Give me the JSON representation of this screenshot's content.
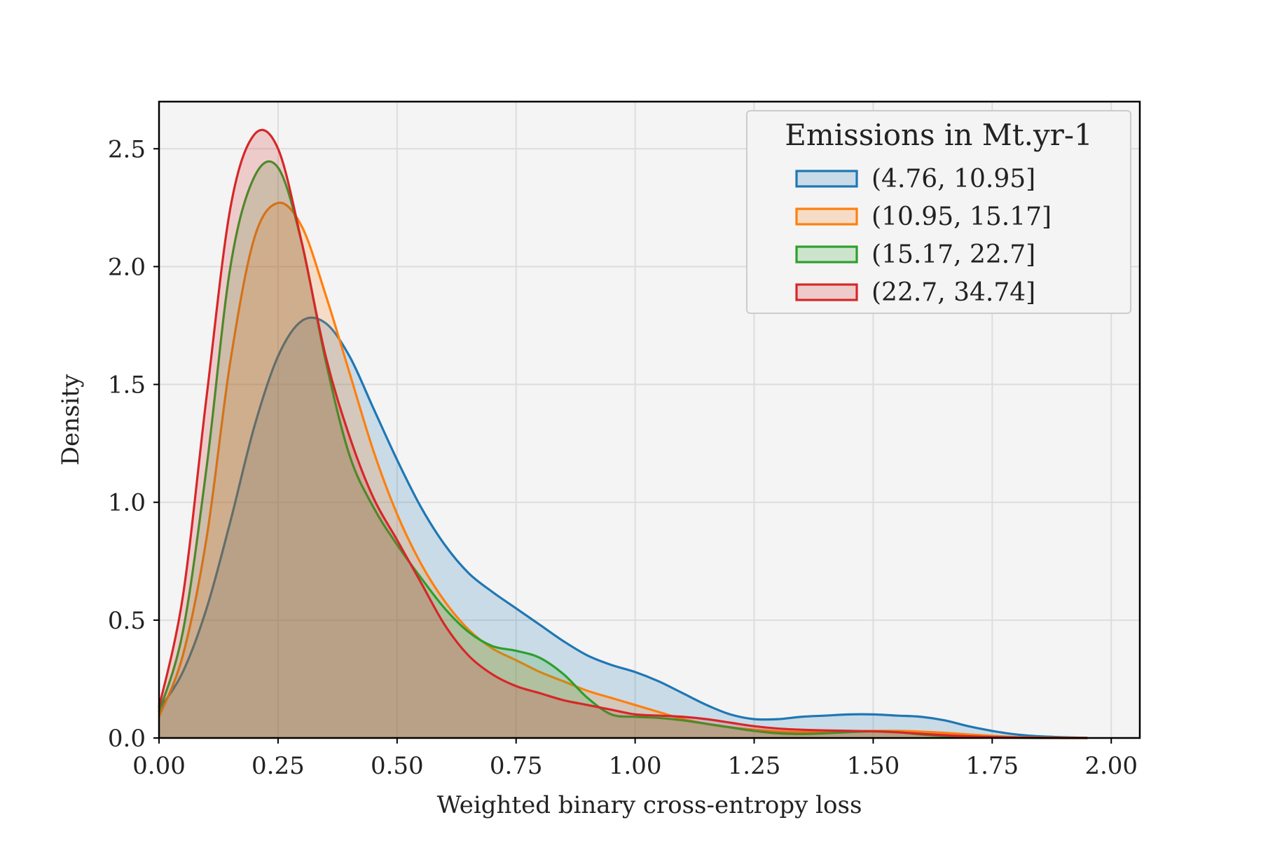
{
  "chart_data": {
    "type": "area",
    "title": "",
    "xlabel": "Weighted binary cross-entropy loss",
    "ylabel": "Density",
    "xlim": [
      0.0,
      2.06
    ],
    "ylim": [
      0.0,
      2.7
    ],
    "x_ticks": [
      0.0,
      0.25,
      0.5,
      0.75,
      1.0,
      1.25,
      1.5,
      1.75,
      2.0
    ],
    "x_tick_labels": [
      "0.00",
      "0.25",
      "0.50",
      "0.75",
      "1.00",
      "1.25",
      "1.50",
      "1.75",
      "2.00"
    ],
    "y_ticks": [
      0.0,
      0.5,
      1.0,
      1.5,
      2.0,
      2.5
    ],
    "y_tick_labels": [
      "0.0",
      "0.5",
      "1.0",
      "1.5",
      "2.0",
      "2.5"
    ],
    "grid": true,
    "legend": {
      "title": "Emissions in Mt.yr-1",
      "position": "top-right"
    },
    "series": [
      {
        "name": "(4.76, 10.95]",
        "color": "#1f77b4",
        "x": [
          0.0,
          0.05,
          0.1,
          0.15,
          0.2,
          0.25,
          0.3,
          0.35,
          0.4,
          0.45,
          0.5,
          0.55,
          0.6,
          0.65,
          0.7,
          0.75,
          0.8,
          0.85,
          0.9,
          0.95,
          1.0,
          1.05,
          1.1,
          1.15,
          1.2,
          1.25,
          1.3,
          1.35,
          1.4,
          1.45,
          1.5,
          1.55,
          1.6,
          1.65,
          1.7,
          1.75,
          1.8,
          1.85,
          1.9,
          1.95
        ],
        "y": [
          0.12,
          0.28,
          0.55,
          0.92,
          1.32,
          1.62,
          1.77,
          1.76,
          1.62,
          1.4,
          1.18,
          0.98,
          0.82,
          0.7,
          0.62,
          0.55,
          0.48,
          0.41,
          0.35,
          0.31,
          0.28,
          0.24,
          0.19,
          0.14,
          0.1,
          0.08,
          0.08,
          0.09,
          0.095,
          0.1,
          0.1,
          0.095,
          0.09,
          0.075,
          0.05,
          0.03,
          0.015,
          0.007,
          0.003,
          0.0
        ]
      },
      {
        "name": "(10.95, 15.17]",
        "color": "#ff7f0e",
        "x": [
          0.0,
          0.05,
          0.1,
          0.15,
          0.2,
          0.25,
          0.3,
          0.35,
          0.4,
          0.45,
          0.5,
          0.55,
          0.6,
          0.65,
          0.7,
          0.75,
          0.8,
          0.85,
          0.9,
          0.95,
          1.0,
          1.05,
          1.1,
          1.15,
          1.2,
          1.25,
          1.3,
          1.35,
          1.4,
          1.45,
          1.5,
          1.55,
          1.6,
          1.65,
          1.7,
          1.75,
          1.8,
          1.85,
          1.9,
          1.95
        ],
        "y": [
          0.09,
          0.35,
          0.85,
          1.6,
          2.12,
          2.27,
          2.17,
          1.88,
          1.55,
          1.22,
          0.95,
          0.74,
          0.58,
          0.46,
          0.38,
          0.33,
          0.28,
          0.24,
          0.2,
          0.17,
          0.14,
          0.11,
          0.08,
          0.06,
          0.045,
          0.035,
          0.028,
          0.025,
          0.025,
          0.028,
          0.03,
          0.03,
          0.027,
          0.022,
          0.015,
          0.009,
          0.004,
          0.002,
          0.001,
          0.0
        ]
      },
      {
        "name": "(15.17, 22.7]",
        "color": "#2ca02c",
        "x": [
          0.0,
          0.05,
          0.1,
          0.15,
          0.2,
          0.25,
          0.3,
          0.35,
          0.4,
          0.45,
          0.5,
          0.55,
          0.6,
          0.65,
          0.7,
          0.75,
          0.8,
          0.85,
          0.9,
          0.95,
          1.0,
          1.05,
          1.1,
          1.15,
          1.2,
          1.25,
          1.3,
          1.35,
          1.4,
          1.45,
          1.5,
          1.55,
          1.6,
          1.65,
          1.7,
          1.75,
          1.8,
          1.85,
          1.9,
          1.95
        ],
        "y": [
          0.11,
          0.45,
          1.15,
          2.0,
          2.38,
          2.42,
          2.1,
          1.6,
          1.2,
          0.98,
          0.82,
          0.68,
          0.55,
          0.45,
          0.39,
          0.37,
          0.34,
          0.27,
          0.17,
          0.1,
          0.09,
          0.085,
          0.075,
          0.06,
          0.045,
          0.03,
          0.02,
          0.017,
          0.02,
          0.025,
          0.028,
          0.025,
          0.015,
          0.008,
          0.004,
          0.002,
          0.001,
          0.0,
          0.0,
          0.0
        ]
      },
      {
        "name": "(22.7, 34.74]",
        "color": "#d62728",
        "x": [
          0.0,
          0.05,
          0.1,
          0.15,
          0.2,
          0.25,
          0.3,
          0.35,
          0.4,
          0.45,
          0.5,
          0.55,
          0.6,
          0.65,
          0.7,
          0.75,
          0.8,
          0.85,
          0.9,
          0.95,
          1.0,
          1.05,
          1.1,
          1.15,
          1.2,
          1.25,
          1.3,
          1.35,
          1.4,
          1.45,
          1.5,
          1.55,
          1.6,
          1.65,
          1.7,
          1.75,
          1.8,
          1.85,
          1.9,
          1.95
        ],
        "y": [
          0.13,
          0.6,
          1.45,
          2.25,
          2.56,
          2.5,
          2.1,
          1.62,
          1.28,
          1.02,
          0.84,
          0.66,
          0.48,
          0.35,
          0.27,
          0.22,
          0.19,
          0.16,
          0.14,
          0.12,
          0.1,
          0.095,
          0.09,
          0.08,
          0.065,
          0.05,
          0.04,
          0.035,
          0.032,
          0.03,
          0.028,
          0.024,
          0.018,
          0.012,
          0.007,
          0.004,
          0.002,
          0.001,
          0.0,
          0.0
        ]
      }
    ]
  }
}
